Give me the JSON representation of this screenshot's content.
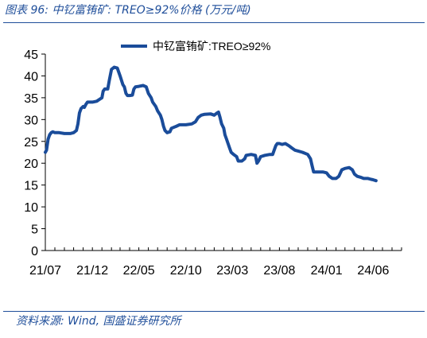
{
  "header": {
    "title": "图表 96:  中钇富铕矿: TREO≥92%价格 (万元/吨)"
  },
  "footer": {
    "source": "资料来源: Wind, 国盛证券研究所"
  },
  "colors": {
    "accent": "#1f4e9a",
    "series": "#1a4c9a"
  },
  "chart_data": {
    "type": "line",
    "title": "",
    "xlabel": "",
    "ylabel": "",
    "ylim": [
      0,
      45
    ],
    "yticks": [
      0,
      5,
      10,
      15,
      20,
      25,
      30,
      35,
      40,
      45
    ],
    "xlim": [
      "2021-07",
      "2024-09"
    ],
    "xticks": [
      "21/07",
      "21/12",
      "22/05",
      "22/10",
      "23/03",
      "23/08",
      "24/01",
      "24/06"
    ],
    "legend_position": "top-center",
    "grid": false,
    "series": [
      {
        "name": "中钇富铕矿:TREO≥92%",
        "points": [
          [
            "2021-07-01",
            22.5
          ],
          [
            "2021-07-05",
            23.0
          ],
          [
            "2021-07-10",
            25.5
          ],
          [
            "2021-07-15",
            26.5
          ],
          [
            "2021-07-20",
            27.0
          ],
          [
            "2021-07-25",
            27.2
          ],
          [
            "2021-08-01",
            27.0
          ],
          [
            "2021-08-15",
            27.0
          ],
          [
            "2021-09-01",
            26.8
          ],
          [
            "2021-09-20",
            26.8
          ],
          [
            "2021-10-01",
            27.0
          ],
          [
            "2021-10-10",
            27.5
          ],
          [
            "2021-10-15",
            29.0
          ],
          [
            "2021-10-20",
            31.5
          ],
          [
            "2021-10-25",
            32.5
          ],
          [
            "2021-11-01",
            33.0
          ],
          [
            "2021-11-05",
            32.8
          ],
          [
            "2021-11-10",
            33.5
          ],
          [
            "2021-11-15",
            34.0
          ],
          [
            "2021-12-01",
            34.0
          ],
          [
            "2021-12-15",
            34.2
          ],
          [
            "2022-01-01",
            35.0
          ],
          [
            "2022-01-05",
            36.5
          ],
          [
            "2022-01-10",
            37.0
          ],
          [
            "2022-01-20",
            37.0
          ],
          [
            "2022-01-25",
            39.0
          ],
          [
            "2022-02-01",
            41.5
          ],
          [
            "2022-02-10",
            42.0
          ],
          [
            "2022-02-20",
            41.8
          ],
          [
            "2022-03-01",
            40.0
          ],
          [
            "2022-03-10",
            38.0
          ],
          [
            "2022-03-15",
            37.5
          ],
          [
            "2022-03-20",
            36.0
          ],
          [
            "2022-03-25",
            35.5
          ],
          [
            "2022-04-01",
            35.5
          ],
          [
            "2022-04-10",
            35.6
          ],
          [
            "2022-04-15",
            37.0
          ],
          [
            "2022-04-20",
            37.5
          ],
          [
            "2022-05-01",
            37.6
          ],
          [
            "2022-05-15",
            37.8
          ],
          [
            "2022-05-25",
            37.5
          ],
          [
            "2022-06-01",
            36.0
          ],
          [
            "2022-06-10",
            35.0
          ],
          [
            "2022-06-15",
            34.0
          ],
          [
            "2022-06-25",
            33.0
          ],
          [
            "2022-07-01",
            32.0
          ],
          [
            "2022-07-10",
            31.0
          ],
          [
            "2022-07-15",
            30.0
          ],
          [
            "2022-07-20",
            28.5
          ],
          [
            "2022-07-25",
            27.5
          ],
          [
            "2022-08-01",
            27.0
          ],
          [
            "2022-08-10",
            27.2
          ],
          [
            "2022-08-15",
            28.0
          ],
          [
            "2022-08-25",
            28.3
          ],
          [
            "2022-09-01",
            28.5
          ],
          [
            "2022-09-10",
            28.8
          ],
          [
            "2022-10-01",
            28.8
          ],
          [
            "2022-10-20",
            29.0
          ],
          [
            "2022-11-01",
            29.5
          ],
          [
            "2022-11-10",
            30.5
          ],
          [
            "2022-11-20",
            31.0
          ],
          [
            "2022-12-01",
            31.2
          ],
          [
            "2022-12-20",
            31.3
          ],
          [
            "2023-01-01",
            31.0
          ],
          [
            "2023-01-10",
            31.5
          ],
          [
            "2023-01-15",
            31.7
          ],
          [
            "2023-01-20",
            30.5
          ],
          [
            "2023-01-25",
            29.0
          ],
          [
            "2023-02-01",
            28.0
          ],
          [
            "2023-02-05",
            26.5
          ],
          [
            "2023-02-10",
            25.5
          ],
          [
            "2023-02-15",
            24.5
          ],
          [
            "2023-02-20",
            23.5
          ],
          [
            "2023-02-25",
            22.5
          ],
          [
            "2023-03-05",
            22.0
          ],
          [
            "2023-03-15",
            21.5
          ],
          [
            "2023-03-20",
            20.5
          ],
          [
            "2023-04-01",
            20.5
          ],
          [
            "2023-04-10",
            21.0
          ],
          [
            "2023-04-15",
            21.8
          ],
          [
            "2023-05-01",
            22.0
          ],
          [
            "2023-05-15",
            21.8
          ],
          [
            "2023-05-20",
            20.0
          ],
          [
            "2023-05-25",
            20.5
          ],
          [
            "2023-06-01",
            21.5
          ],
          [
            "2023-06-15",
            21.8
          ],
          [
            "2023-07-01",
            22.0
          ],
          [
            "2023-07-10",
            22.0
          ],
          [
            "2023-07-15",
            23.0
          ],
          [
            "2023-07-20",
            24.0
          ],
          [
            "2023-07-25",
            24.5
          ],
          [
            "2023-08-01",
            24.5
          ],
          [
            "2023-08-10",
            24.3
          ],
          [
            "2023-08-20",
            24.5
          ],
          [
            "2023-09-01",
            24.0
          ],
          [
            "2023-09-10",
            23.5
          ],
          [
            "2023-09-20",
            23.0
          ],
          [
            "2023-10-01",
            22.8
          ],
          [
            "2023-10-15",
            22.5
          ],
          [
            "2023-11-01",
            22.0
          ],
          [
            "2023-11-10",
            21.0
          ],
          [
            "2023-11-15",
            19.5
          ],
          [
            "2023-11-20",
            18.0
          ],
          [
            "2023-12-01",
            18.0
          ],
          [
            "2023-12-20",
            18.0
          ],
          [
            "2024-01-01",
            17.8
          ],
          [
            "2024-01-10",
            17.0
          ],
          [
            "2024-01-20",
            16.5
          ],
          [
            "2024-02-01",
            16.5
          ],
          [
            "2024-02-10",
            17.0
          ],
          [
            "2024-02-20",
            18.5
          ],
          [
            "2024-03-01",
            18.8
          ],
          [
            "2024-03-15",
            19.0
          ],
          [
            "2024-03-25",
            18.5
          ],
          [
            "2024-04-01",
            17.5
          ],
          [
            "2024-04-10",
            17.0
          ],
          [
            "2024-04-20",
            16.8
          ],
          [
            "2024-05-01",
            16.5
          ],
          [
            "2024-05-15",
            16.5
          ],
          [
            "2024-05-25",
            16.3
          ],
          [
            "2024-06-01",
            16.2
          ],
          [
            "2024-06-10",
            16.0
          ]
        ]
      }
    ]
  }
}
